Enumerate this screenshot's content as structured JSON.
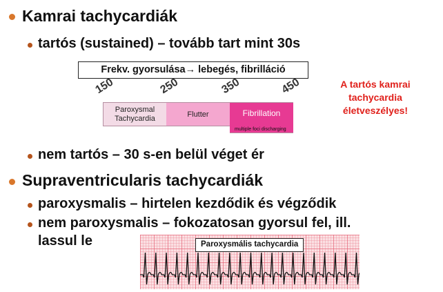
{
  "bullets": {
    "kamrai": "Kamrai tachycardiák",
    "tartos": "tartós (sustained) – tovább tart mint 30s",
    "nem_tartos": "nem tartós – 30 s-en belül véget ér",
    "supra": "Supraventricularis tachycardiák",
    "paroxysmalis": "paroxysmalis – hirtelen kezdődik és végződik",
    "nem_paroxysmalis_line1": "nem paroxysmalis – fokozatosan gyorsul fel, ill.",
    "nem_paroxysmalis_line2": "lassul le"
  },
  "frequency_diagram": {
    "title": "Frekv. gyorsulása→ lebegés, fibrilláció",
    "ticks": [
      "150",
      "250",
      "350",
      "450"
    ],
    "segments": [
      {
        "label_line1": "Paroxysmal",
        "label_line2": "Tachycardia",
        "color": "#f3dbe6",
        "text_color": "#222222",
        "from": 150,
        "to": 250
      },
      {
        "label_line1": "Flutter",
        "label_line2": "",
        "color": "#f4a7cf",
        "text_color": "#222222",
        "from": 250,
        "to": 350
      },
      {
        "label_line1": "Fibrillation",
        "label_line2": "",
        "color": "#e73a93",
        "text_color": "#ffffff",
        "from": 350,
        "to": 450
      }
    ],
    "range": [
      150,
      450
    ],
    "fibrillation_note": "multiple foci discharging"
  },
  "warning_note": {
    "line1": "A tartós kamrai",
    "line2": "tachycardia",
    "line3": "életveszélyes!",
    "color": "#e0201b"
  },
  "ecg": {
    "label": "Paroxysmális tachycardia",
    "grid_color": "#e45a6e"
  },
  "colors": {
    "bullet_level1": "#d9772b",
    "bullet_level2": "#b5541c"
  }
}
